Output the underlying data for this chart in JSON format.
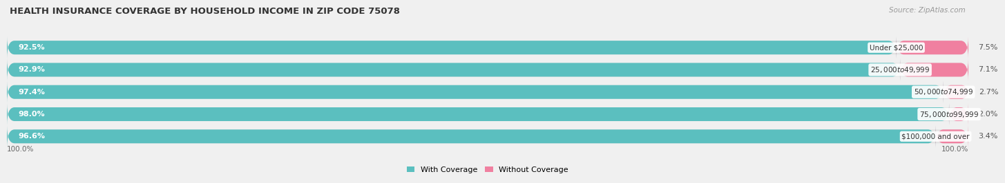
{
  "title": "HEALTH INSURANCE COVERAGE BY HOUSEHOLD INCOME IN ZIP CODE 75078",
  "source": "Source: ZipAtlas.com",
  "categories": [
    "Under $25,000",
    "$25,000 to $49,999",
    "$50,000 to $74,999",
    "$75,000 to $99,999",
    "$100,000 and over"
  ],
  "with_coverage": [
    92.5,
    92.9,
    97.4,
    98.0,
    96.6
  ],
  "without_coverage": [
    7.5,
    7.1,
    2.7,
    2.0,
    3.4
  ],
  "with_coverage_color": "#5BBFBF",
  "without_coverage_color": "#F080A0",
  "bar_height": 0.62,
  "background_color": "#f0f0f0",
  "bar_background_color": "#e2e2e2",
  "title_fontsize": 9.5,
  "label_fontsize": 8.0,
  "cat_fontsize": 7.5,
  "tick_fontsize": 7.5,
  "legend_fontsize": 8.0,
  "source_fontsize": 7.5,
  "xlim": [
    0,
    100
  ],
  "xlabel_label": "100.0%"
}
